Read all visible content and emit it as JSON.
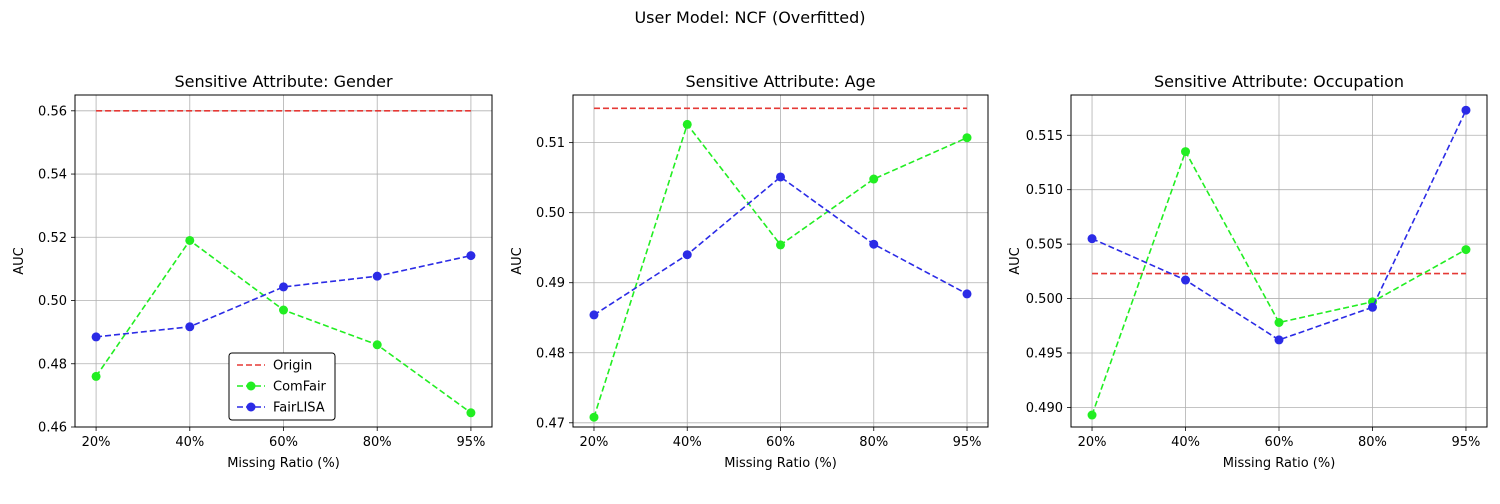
{
  "figure": {
    "suptitle": "User Model: NCF (Overfitted)"
  },
  "colors": {
    "origin": "#e53935",
    "comfair": "#22ee22",
    "fairlisa": "#2b2be6",
    "grid": "#b0b0b0"
  },
  "chart_data": [
    {
      "type": "line",
      "title": "Sensitive Attribute: Gender",
      "xlabel": "Missing Ratio (%)",
      "ylabel": "AUC",
      "categories": [
        "20%",
        "40%",
        "60%",
        "80%",
        "95%"
      ],
      "ylim": [
        0.46,
        0.565
      ],
      "yticks": [
        "0.46",
        "0.48",
        "0.50",
        "0.52",
        "0.54",
        "0.56"
      ],
      "grid": true,
      "legend": "lower center",
      "series": [
        {
          "name": "Origin",
          "values": [
            0.56,
            0.56,
            0.56,
            0.56,
            0.56
          ],
          "markers": false
        },
        {
          "name": "ComFair",
          "values": [
            0.476,
            0.519,
            0.497,
            0.486,
            0.4645
          ],
          "markers": true
        },
        {
          "name": "FairLISA",
          "values": [
            0.4885,
            0.4917,
            0.5043,
            0.5077,
            0.5142
          ],
          "markers": true
        }
      ]
    },
    {
      "type": "line",
      "title": "Sensitive Attribute: Age",
      "xlabel": "Missing Ratio (%)",
      "ylabel": "AUC",
      "categories": [
        "20%",
        "40%",
        "60%",
        "80%",
        "95%"
      ],
      "ylim": [
        0.4694,
        0.5168
      ],
      "yticks": [
        "0.47",
        "0.48",
        "0.49",
        "0.50",
        "0.51"
      ],
      "grid": true,
      "legend": "none",
      "series": [
        {
          "name": "Origin",
          "values": [
            0.5149,
            0.5149,
            0.5149,
            0.5149,
            0.5149
          ],
          "markers": false
        },
        {
          "name": "ComFair",
          "values": [
            0.4708,
            0.5126,
            0.4954,
            0.5048,
            0.5107
          ],
          "markers": true
        },
        {
          "name": "FairLISA",
          "values": [
            0.4854,
            0.494,
            0.5051,
            0.4955,
            0.4884
          ],
          "markers": true
        }
      ]
    },
    {
      "type": "line",
      "title": "Sensitive Attribute: Occupation",
      "xlabel": "Missing Ratio (%)",
      "ylabel": "AUC",
      "categories": [
        "20%",
        "40%",
        "60%",
        "80%",
        "95%"
      ],
      "ylim": [
        0.4882,
        0.5187
      ],
      "yticks": [
        "0.490",
        "0.495",
        "0.500",
        "0.505",
        "0.510",
        "0.515"
      ],
      "grid": true,
      "legend": "none",
      "series": [
        {
          "name": "Origin",
          "values": [
            0.5023,
            0.5023,
            0.5023,
            0.5023,
            0.5023
          ],
          "markers": false
        },
        {
          "name": "ComFair",
          "values": [
            0.4893,
            0.5135,
            0.4978,
            0.4997,
            0.5045
          ],
          "markers": true
        },
        {
          "name": "FairLISA",
          "values": [
            0.5055,
            0.5017,
            0.4962,
            0.4992,
            0.5173
          ],
          "markers": true
        }
      ]
    }
  ]
}
